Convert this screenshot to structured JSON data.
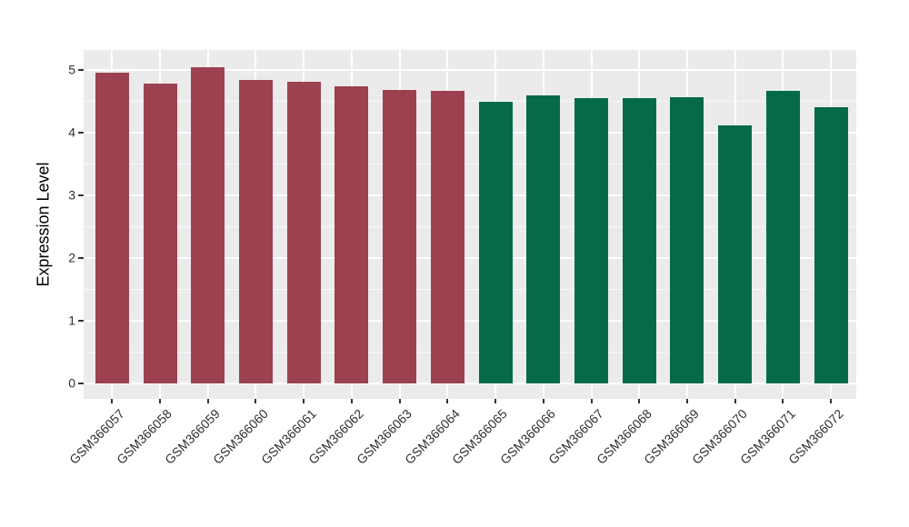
{
  "chart_data": {
    "type": "bar",
    "title": "",
    "xlabel": "",
    "ylabel": "Expression Level",
    "categories": [
      "GSM366057",
      "GSM366058",
      "GSM366059",
      "GSM366060",
      "GSM366061",
      "GSM366062",
      "GSM366063",
      "GSM366064",
      "GSM366065",
      "GSM366066",
      "GSM366067",
      "GSM366068",
      "GSM366069",
      "GSM366070",
      "GSM366071",
      "GSM366072"
    ],
    "values": [
      4.95,
      4.78,
      5.05,
      4.84,
      4.81,
      4.74,
      4.68,
      4.66,
      4.49,
      4.6,
      4.55,
      4.55,
      4.56,
      4.11,
      4.66,
      4.41
    ],
    "bar_group_keys": [
      "group1",
      "group1",
      "group1",
      "group1",
      "group1",
      "group1",
      "group1",
      "group1",
      "group2",
      "group2",
      "group2",
      "group2",
      "group2",
      "group2",
      "group2",
      "group2"
    ],
    "colors": {
      "group1": "#9C4150",
      "group2": "#056A49"
    },
    "yticks": [
      0,
      1,
      2,
      3,
      4,
      5
    ],
    "minor_yticks": [
      0.5,
      1.5,
      2.5,
      3.5,
      4.5
    ],
    "ylim": [
      -0.25,
      5.32
    ],
    "panel_background": "#EBEBEB",
    "grid_color": "#FFFFFF",
    "grid": "on",
    "legend": "none",
    "x_tick_rotation_deg": 45
  }
}
